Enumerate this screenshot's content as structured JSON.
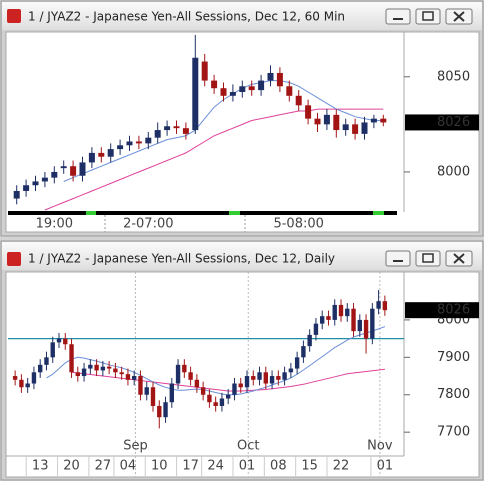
{
  "chart_data": [
    {
      "type": "candlestick",
      "title": "1 / JYAZ2 - Japanese Yen-All Sessions, Dec 12, 60 Min",
      "categories": [
        null,
        null,
        null,
        null,
        "19:00",
        null,
        null,
        null,
        null,
        null,
        null,
        null,
        null,
        null,
        "2-07:00",
        null,
        null,
        null,
        null,
        null,
        null,
        null,
        null,
        null,
        null,
        null,
        null,
        null,
        null,
        null,
        "5-08:00",
        null,
        null,
        null,
        null,
        null,
        null,
        null,
        null,
        null
      ],
      "open": [
        7986,
        7990,
        7993,
        7995,
        7997,
        8002,
        8003,
        7998,
        8005,
        8010,
        8008,
        8012,
        8014,
        8016,
        8015,
        8018,
        8022,
        8024,
        8023,
        8022,
        8058,
        8048,
        8044,
        8040,
        8042,
        8045,
        8043,
        8048,
        8052,
        8045,
        8040,
        8035,
        8028,
        8025,
        8030,
        8022,
        8025,
        8020,
        8026,
        8028
      ],
      "high": [
        7993,
        7996,
        7998,
        8000,
        8003,
        8006,
        8006,
        8008,
        8013,
        8013,
        8015,
        8017,
        8019,
        8019,
        8021,
        8026,
        8027,
        8027,
        8026,
        8072,
        8062,
        8051,
        8047,
        8046,
        8048,
        8048,
        8051,
        8056,
        8055,
        8048,
        8043,
        8038,
        8031,
        8033,
        8033,
        8028,
        8028,
        8029,
        8030,
        8030
      ],
      "low": [
        7983,
        7987,
        7990,
        7992,
        7994,
        7999,
        7995,
        7995,
        8002,
        8005,
        8005,
        8009,
        8011,
        8012,
        8012,
        8015,
        8019,
        8020,
        8017,
        8020,
        8045,
        8041,
        8037,
        8037,
        8039,
        8040,
        8040,
        8045,
        8042,
        8037,
        8032,
        8025,
        8021,
        8022,
        8018,
        8019,
        8017,
        8017,
        8023,
        8024
      ],
      "close": [
        7990,
        7993,
        7995,
        7997,
        8000,
        8003,
        7998,
        8005,
        8010,
        8008,
        8012,
        8014,
        8016,
        8015,
        8018,
        8022,
        8024,
        8023,
        8020,
        8060,
        8048,
        8044,
        8040,
        8042,
        8045,
        8043,
        8048,
        8052,
        8045,
        8040,
        8035,
        8028,
        8025,
        8030,
        8022,
        8025,
        8020,
        8026,
        8028,
        8026
      ],
      "up_color": "#1e2f66",
      "down_color": "#a31515",
      "series": [
        {
          "color": "#e0409a",
          "values": [
            null,
            null,
            null,
            7980,
            7982,
            7984,
            7986,
            7988,
            7990,
            7992,
            7994,
            7996,
            7998,
            8000,
            8002,
            8004,
            8006,
            8008,
            8010,
            8013,
            8016,
            8019,
            8021,
            8023,
            8025,
            8027,
            8028,
            8029,
            8030,
            8031,
            8032,
            8032,
            8033,
            8033,
            8033,
            8033,
            8033,
            8033,
            8033,
            8033
          ]
        },
        {
          "color": "#6a8fd8",
          "values": [
            null,
            null,
            null,
            null,
            null,
            7995,
            7997,
            7999,
            8001,
            8003,
            8005,
            8007,
            8009,
            8011,
            8013,
            8015,
            8017,
            8018,
            8019,
            8022,
            8028,
            8034,
            8038,
            8041,
            8044,
            8046,
            8047,
            8048,
            8048,
            8047,
            8045,
            8042,
            8039,
            8036,
            8033,
            8031,
            8029,
            8028,
            8027,
            8027
          ]
        }
      ],
      "last_price": 8026,
      "ylim": [
        7980,
        8073
      ],
      "yticks": [
        8000,
        8050
      ]
    },
    {
      "type": "candlestick",
      "title": "1 / JYAZ2 - Japanese Yen-All Sessions, Dec 12, Daily",
      "categories": [
        null,
        null,
        null,
        null,
        "13",
        null,
        null,
        null,
        null,
        "20",
        null,
        null,
        null,
        null,
        "27",
        null,
        null,
        null,
        "04",
        null,
        null,
        null,
        null,
        "10",
        null,
        null,
        null,
        null,
        "17",
        null,
        null,
        null,
        "24",
        null,
        null,
        null,
        null,
        "01",
        null,
        null,
        null,
        null,
        "08",
        null,
        null,
        null,
        null,
        "15",
        null,
        null,
        null,
        null,
        "22",
        null,
        null,
        null,
        null,
        null,
        null,
        "01"
      ],
      "months": [
        null,
        null,
        null,
        null,
        null,
        null,
        null,
        null,
        null,
        null,
        null,
        null,
        null,
        null,
        null,
        null,
        null,
        null,
        null,
        null,
        "Sep",
        null,
        null,
        null,
        null,
        null,
        null,
        null,
        null,
        null,
        null,
        null,
        null,
        null,
        null,
        null,
        null,
        null,
        "Oct",
        null,
        null,
        null,
        null,
        null,
        null,
        null,
        null,
        null,
        null,
        null,
        null,
        null,
        null,
        null,
        null,
        null,
        null,
        null,
        null,
        "Nov"
      ],
      "open": [
        7850,
        7840,
        7820,
        7830,
        7860,
        7880,
        7900,
        7940,
        7950,
        7935,
        7860,
        7850,
        7870,
        7880,
        7865,
        7875,
        7870,
        7860,
        7855,
        7840,
        7850,
        7800,
        7820,
        7770,
        7740,
        7780,
        7830,
        7880,
        7860,
        7840,
        7820,
        7800,
        7780,
        7770,
        7790,
        7800,
        7830,
        7820,
        7850,
        7840,
        7860,
        7830,
        7850,
        7840,
        7860,
        7870,
        7900,
        7930,
        7960,
        7990,
        8010,
        8000,
        8040,
        8010,
        8030,
        7970,
        8000,
        7950,
        8030,
        8050
      ],
      "high": [
        7865,
        7855,
        7845,
        7875,
        7895,
        7915,
        7955,
        7965,
        7965,
        7950,
        7875,
        7885,
        7895,
        7895,
        7890,
        7890,
        7885,
        7875,
        7870,
        7865,
        7865,
        7835,
        7835,
        7785,
        7795,
        7845,
        7895,
        7895,
        7875,
        7855,
        7835,
        7815,
        7795,
        7805,
        7815,
        7845,
        7845,
        7865,
        7865,
        7875,
        7875,
        7865,
        7865,
        7875,
        7885,
        7915,
        7945,
        7975,
        8005,
        8025,
        8025,
        8055,
        8055,
        8045,
        8045,
        8015,
        8015,
        8045,
        8080,
        8065
      ],
      "low": [
        7825,
        7805,
        7805,
        7815,
        7845,
        7865,
        7885,
        7925,
        7920,
        7845,
        7835,
        7835,
        7855,
        7850,
        7850,
        7855,
        7845,
        7840,
        7825,
        7825,
        7785,
        7785,
        7755,
        7710,
        7725,
        7765,
        7815,
        7845,
        7825,
        7805,
        7785,
        7765,
        7755,
        7755,
        7775,
        7785,
        7805,
        7805,
        7825,
        7825,
        7815,
        7815,
        7825,
        7825,
        7845,
        7855,
        7885,
        7915,
        7945,
        7975,
        7985,
        7985,
        7995,
        7995,
        7955,
        7955,
        7910,
        7935,
        8015,
        8011
      ],
      "close": [
        7840,
        7820,
        7830,
        7860,
        7880,
        7900,
        7940,
        7950,
        7935,
        7860,
        7850,
        7870,
        7880,
        7865,
        7875,
        7870,
        7860,
        7855,
        7840,
        7850,
        7800,
        7820,
        7770,
        7740,
        7780,
        7830,
        7880,
        7860,
        7840,
        7820,
        7800,
        7780,
        7770,
        7790,
        7800,
        7830,
        7820,
        7850,
        7840,
        7860,
        7830,
        7850,
        7840,
        7860,
        7870,
        7900,
        7930,
        7960,
        7990,
        8010,
        8000,
        8040,
        8010,
        8030,
        7970,
        8000,
        7950,
        8030,
        8050,
        8026
      ],
      "up_color": "#1e2f66",
      "down_color": "#a31515",
      "series": [
        {
          "color": "#e0409a",
          "values": [
            null,
            null,
            null,
            null,
            null,
            null,
            null,
            null,
            null,
            7860,
            7858,
            7856,
            7854,
            7852,
            7850,
            7848,
            7846,
            7844,
            7842,
            7840,
            7838,
            7836,
            7834,
            7832,
            7830,
            7828,
            7826,
            7824,
            7822,
            7820,
            7818,
            7816,
            7814,
            7812,
            7810,
            7810,
            7810,
            7811,
            7812,
            7813,
            7814,
            7816,
            7818,
            7820,
            7822,
            7825,
            7828,
            7832,
            7836,
            7840,
            7844,
            7848,
            7852,
            7856,
            7858,
            7860,
            7862,
            7864,
            7866,
            7868
          ]
        },
        {
          "color": "#6a8fd8",
          "values": [
            null,
            null,
            null,
            null,
            null,
            7845,
            7855,
            7870,
            7885,
            7895,
            7900,
            7898,
            7894,
            7890,
            7885,
            7880,
            7876,
            7872,
            7866,
            7860,
            7852,
            7843,
            7834,
            7826,
            7820,
            7815,
            7812,
            7812,
            7814,
            7815,
            7814,
            7810,
            7806,
            7802,
            7800,
            7800,
            7802,
            7806,
            7810,
            7815,
            7820,
            7826,
            7832,
            7838,
            7845,
            7855,
            7866,
            7878,
            7890,
            7902,
            7914,
            7926,
            7936,
            7946,
            7954,
            7960,
            7965,
            7970,
            7976,
            7982
          ]
        }
      ],
      "hline": 7950,
      "hline_color": "#1f8fa8",
      "last_price": 8026,
      "ylim": [
        7639,
        8128
      ],
      "yticks": [
        7700,
        7800,
        7900,
        8000
      ]
    }
  ]
}
